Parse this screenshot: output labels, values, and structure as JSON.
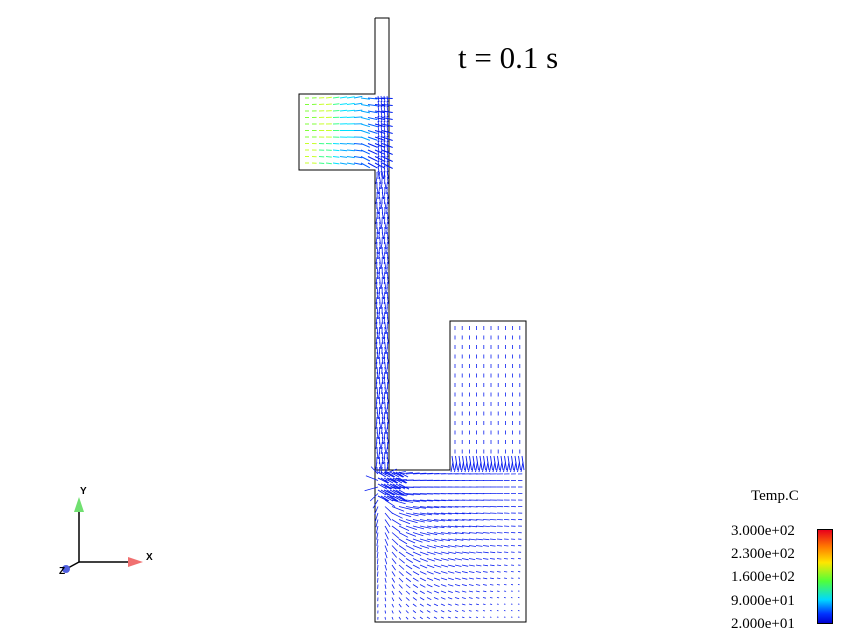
{
  "time_label": "t = 0.1 s",
  "legend": {
    "title": "Temp.C",
    "ticks": [
      "3.000e+02",
      "2.300e+02",
      "1.600e+02",
      "9.000e+01",
      "2.000e+01"
    ],
    "colors": [
      "#e8001b",
      "#ff7a00",
      "#ffe600",
      "#50ff3a",
      "#00d8ff",
      "#0033ff",
      "#0000d0"
    ]
  },
  "axes": {
    "x": "X",
    "y": "Y",
    "z": "Z"
  },
  "colors": {
    "outline": "#000000",
    "vector_dominant": "#0a1ef0",
    "axis_x": "#f07070",
    "axis_y": "#70e070",
    "axis_z": "#5060e0"
  }
}
